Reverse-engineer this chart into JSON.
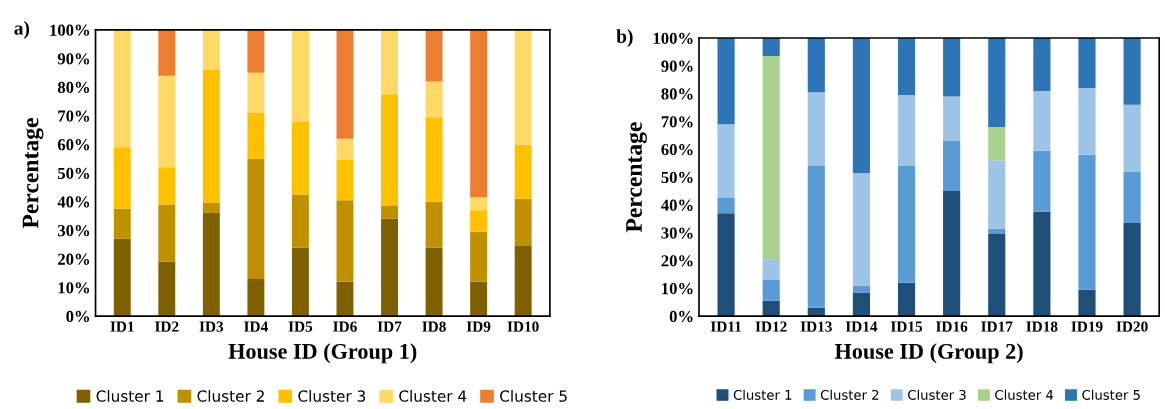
{
  "chart_data": [
    {
      "type": "bar",
      "stacked": true,
      "xlabel": "House ID (Group 1)",
      "ylabel": "Percentage",
      "annotations": [
        "a)"
      ],
      "legend": "bottom",
      "grid": false,
      "categories": [
        "ID1",
        "ID2",
        "ID3",
        "ID4",
        "ID5",
        "ID6",
        "ID7",
        "ID8",
        "ID9",
        "ID10"
      ],
      "ylim": [
        0,
        100
      ],
      "yticks": [
        {
          "value": 0,
          "label": "0%"
        },
        {
          "value": 10,
          "label": "10%"
        },
        {
          "value": 20,
          "label": "20%"
        },
        {
          "value": 30,
          "label": "30%"
        },
        {
          "value": 40,
          "label": "40%"
        },
        {
          "value": 50,
          "label": "50%"
        },
        {
          "value": 60,
          "label": "60%"
        },
        {
          "value": 70,
          "label": "70%"
        },
        {
          "value": 80,
          "label": "80%"
        },
        {
          "value": 90,
          "label": "90%"
        },
        {
          "value": 100,
          "label": "100%"
        }
      ],
      "series": [
        {
          "name": "Cluster 1",
          "color": "#7f6000",
          "values": [
            27,
            19,
            36,
            13,
            24,
            12,
            34,
            24,
            12,
            24.5
          ]
        },
        {
          "name": "Cluster 2",
          "color": "#bf9000",
          "values": [
            10.5,
            20,
            3.5,
            42,
            18.5,
            28.5,
            4.5,
            16,
            17.5,
            16.5
          ]
        },
        {
          "name": "Cluster 3",
          "color": "#ffc000",
          "values": [
            21.5,
            13,
            46.5,
            16,
            25.5,
            14,
            39,
            29.5,
            7.5,
            19
          ]
        },
        {
          "name": "Cluster 4",
          "color": "#ffd966",
          "values": [
            41,
            32,
            14,
            14,
            32,
            7.5,
            22.5,
            12.5,
            4.5,
            40
          ]
        },
        {
          "name": "Cluster 5",
          "color": "#ed7d31",
          "values": [
            0,
            16,
            0,
            15,
            0,
            38,
            0,
            18,
            58.5,
            0
          ]
        }
      ]
    },
    {
      "type": "bar",
      "stacked": true,
      "xlabel": "House ID (Group 2)",
      "ylabel": "Percentage",
      "annotations": [
        "b)"
      ],
      "legend": "bottom",
      "grid": false,
      "categories": [
        "ID11",
        "ID12",
        "ID13",
        "ID14",
        "ID15",
        "ID16",
        "ID17",
        "ID18",
        "ID19",
        "ID20"
      ],
      "ylim": [
        0,
        100
      ],
      "yticks": [
        {
          "value": 0,
          "label": "0%"
        },
        {
          "value": 10,
          "label": "10%"
        },
        {
          "value": 20,
          "label": "20%"
        },
        {
          "value": 30,
          "label": "30%"
        },
        {
          "value": 40,
          "label": "40%"
        },
        {
          "value": 50,
          "label": "50%"
        },
        {
          "value": 60,
          "label": "60%"
        },
        {
          "value": 70,
          "label": "70%"
        },
        {
          "value": 80,
          "label": "80%"
        },
        {
          "value": 90,
          "label": "90%"
        },
        {
          "value": 100,
          "label": "100%"
        }
      ],
      "series": [
        {
          "name": "Cluster 1",
          "color": "#1f4e79",
          "values": [
            37,
            5.5,
            3,
            8.5,
            12,
            45,
            29.5,
            37.5,
            9.5,
            33.5
          ]
        },
        {
          "name": "Cluster 2",
          "color": "#5b9bd5",
          "values": [
            5.5,
            7.5,
            51,
            2.5,
            42,
            18,
            2,
            22,
            48.5,
            18.5
          ]
        },
        {
          "name": "Cluster 3",
          "color": "#9dc3e6",
          "values": [
            26.5,
            7.5,
            26.5,
            40.5,
            25.5,
            16,
            24.5,
            21.5,
            24,
            24
          ]
        },
        {
          "name": "Cluster 4",
          "color": "#a9d18e",
          "values": [
            0,
            73,
            0,
            0,
            0,
            0,
            12,
            0,
            0,
            0
          ]
        },
        {
          "name": "Cluster 5",
          "color": "#2e75b6",
          "values": [
            31,
            6.5,
            19.5,
            48.5,
            20.5,
            21,
            32,
            19,
            18,
            24
          ]
        }
      ]
    }
  ]
}
